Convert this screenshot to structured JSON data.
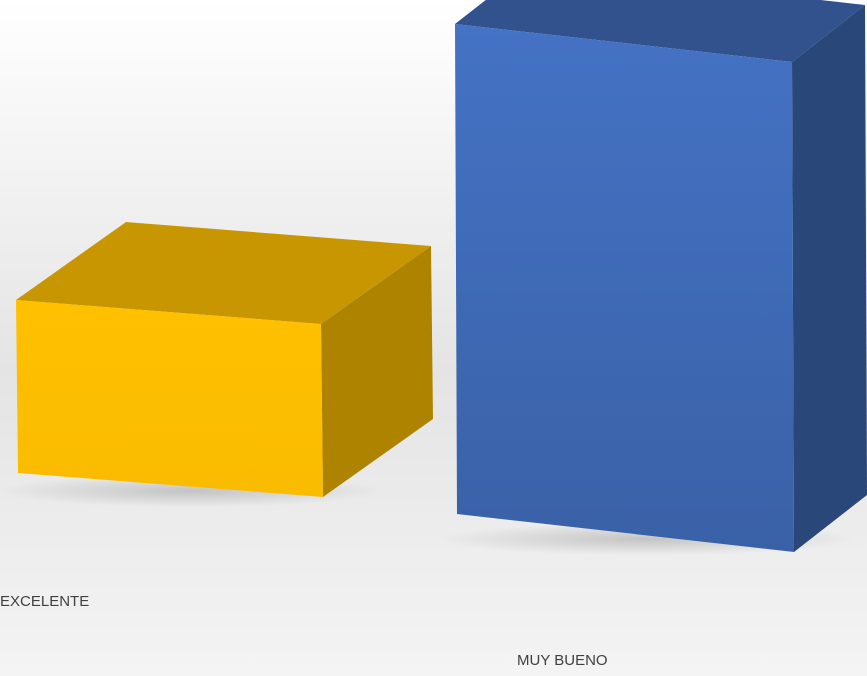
{
  "chart_data": {
    "type": "bar",
    "style": "3d-column",
    "categories": [
      "EXCELENTE",
      "MUY BUENO"
    ],
    "values": [
      1,
      3.4
    ],
    "ylim": [
      0,
      3.4
    ],
    "colors": [
      "#ffc000",
      "#4472c4"
    ],
    "background": "#f2f2f2",
    "grid": false,
    "legend": "none",
    "title": "",
    "xlabel": "",
    "ylabel": ""
  }
}
